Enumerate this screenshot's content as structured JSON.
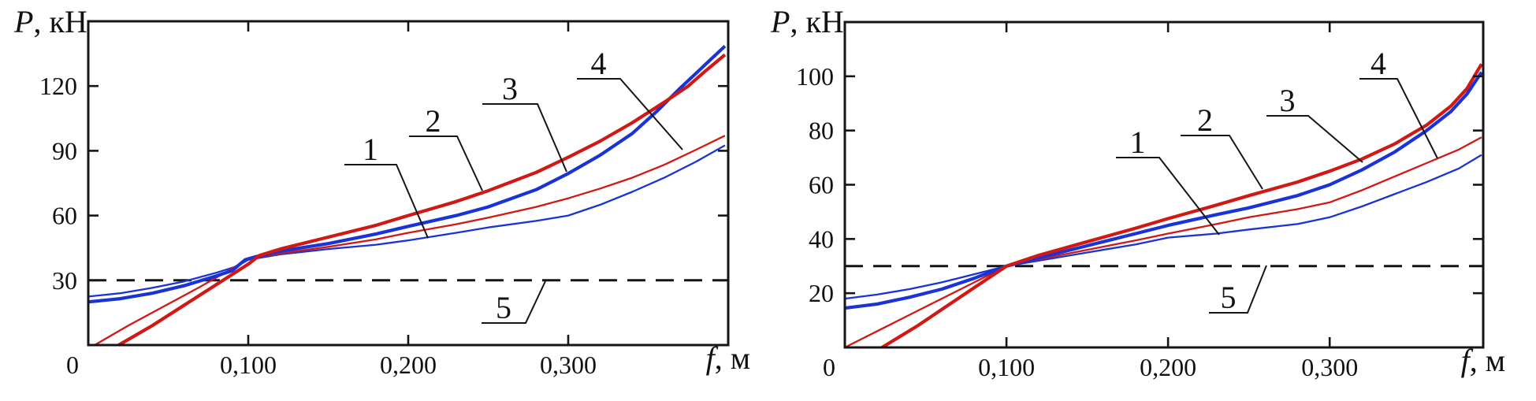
{
  "palette": {
    "red": "#d01815",
    "blue": "#1a33d6",
    "black": "#151515"
  },
  "chart_data": [
    {
      "type": "line",
      "id": "left",
      "title": "",
      "ylabel_var": "P",
      "ylabel_unit": ", кН",
      "xlabel_var": "f",
      "xlabel_unit": ", м",
      "xlim": [
        0,
        0.4
      ],
      "ylim": [
        0,
        150
      ],
      "grid": false,
      "legend_position": "numbered-callouts",
      "x_ticks": [
        {
          "v": 0,
          "label": "0"
        },
        {
          "v": 0.1,
          "label": "0,100"
        },
        {
          "v": 0.2,
          "label": "0,200"
        },
        {
          "v": 0.3,
          "label": "0,300"
        }
      ],
      "y_ticks": [
        {
          "v": 30,
          "label": "30"
        },
        {
          "v": 60,
          "label": "60"
        },
        {
          "v": 90,
          "label": "90"
        },
        {
          "v": 120,
          "label": "120"
        }
      ],
      "series": [
        {
          "name": "1",
          "color": "blue",
          "weight": "thin",
          "style": "solid",
          "points": [
            [
              0,
              22.5
            ],
            [
              0.02,
              24
            ],
            [
              0.04,
              26.5
            ],
            [
              0.06,
              29.5
            ],
            [
              0.08,
              33.5
            ],
            [
              0.093,
              36.5
            ],
            [
              0.1,
              39.5
            ],
            [
              0.12,
              42
            ],
            [
              0.15,
              44.5
            ],
            [
              0.18,
              46.5
            ],
            [
              0.2,
              48.5
            ],
            [
              0.23,
              52
            ],
            [
              0.25,
              54.5
            ],
            [
              0.28,
              57.5
            ],
            [
              0.3,
              60
            ],
            [
              0.32,
              65
            ],
            [
              0.34,
              71
            ],
            [
              0.36,
              77.5
            ],
            [
              0.38,
              85
            ],
            [
              0.398,
              92.5
            ]
          ]
        },
        {
          "name": "2",
          "color": "red",
          "weight": "thick",
          "style": "solid",
          "points": [
            [
              0.019,
              0
            ],
            [
              0.04,
              9
            ],
            [
              0.06,
              18.5
            ],
            [
              0.08,
              28
            ],
            [
              0.1,
              37.5
            ],
            [
              0.107,
              41.5
            ],
            [
              0.12,
              44.5
            ],
            [
              0.15,
              50
            ],
            [
              0.18,
              55.5
            ],
            [
              0.2,
              60
            ],
            [
              0.23,
              66.5
            ],
            [
              0.25,
              71.5
            ],
            [
              0.28,
              80
            ],
            [
              0.3,
              87
            ],
            [
              0.32,
              94.5
            ],
            [
              0.34,
              103
            ],
            [
              0.36,
              112.5
            ],
            [
              0.375,
              120
            ],
            [
              0.385,
              126.5
            ],
            [
              0.398,
              134.5
            ]
          ]
        },
        {
          "name": "3",
          "color": "blue",
          "weight": "thick",
          "style": "solid",
          "points": [
            [
              0,
              20
            ],
            [
              0.02,
              21.5
            ],
            [
              0.04,
              24
            ],
            [
              0.06,
              27.5
            ],
            [
              0.08,
              32
            ],
            [
              0.09,
              34.5
            ],
            [
              0.098,
              39.5
            ],
            [
              0.105,
              41
            ],
            [
              0.12,
              43.5
            ],
            [
              0.15,
              47
            ],
            [
              0.18,
              51.5
            ],
            [
              0.2,
              55
            ],
            [
              0.23,
              60
            ],
            [
              0.25,
              64
            ],
            [
              0.28,
              72
            ],
            [
              0.3,
              79.5
            ],
            [
              0.32,
              88
            ],
            [
              0.34,
              98
            ],
            [
              0.355,
              108
            ],
            [
              0.37,
              119
            ],
            [
              0.385,
              129.5
            ],
            [
              0.398,
              138.5
            ]
          ]
        },
        {
          "name": "4",
          "color": "red",
          "weight": "thin",
          "style": "solid",
          "points": [
            [
              0.004,
              0
            ],
            [
              0.025,
              9
            ],
            [
              0.05,
              19
            ],
            [
              0.07,
              27
            ],
            [
              0.09,
              35.5
            ],
            [
              0.1,
              40
            ],
            [
              0.12,
              42.5
            ],
            [
              0.15,
              45.5
            ],
            [
              0.18,
              49
            ],
            [
              0.2,
              52
            ],
            [
              0.23,
              56
            ],
            [
              0.25,
              59
            ],
            [
              0.28,
              64
            ],
            [
              0.3,
              68
            ],
            [
              0.32,
              72.5
            ],
            [
              0.34,
              77.5
            ],
            [
              0.36,
              83.5
            ],
            [
              0.38,
              90.5
            ],
            [
              0.398,
              97
            ]
          ]
        },
        {
          "name": "5",
          "color": "black",
          "weight": "thin",
          "style": "dashed",
          "points": [
            [
              0,
              30
            ],
            [
              0.4,
              30
            ]
          ]
        }
      ],
      "callouts": [
        {
          "label": "1",
          "u": [
            437,
            503,
            209
          ],
          "t": [
            543,
            302
          ]
        },
        {
          "label": "2",
          "u": [
            519,
            580,
            173
          ],
          "t": [
            612,
            242
          ]
        },
        {
          "label": "3",
          "u": [
            612,
            682,
            132
          ],
          "t": [
            719,
            218
          ]
        },
        {
          "label": "4",
          "u": [
            732,
            787,
            100
          ],
          "t": [
            866,
            190
          ]
        },
        {
          "label": "5",
          "u": [
            611,
            667,
            410
          ],
          "t": [
            692,
            357
          ]
        }
      ]
    },
    {
      "type": "line",
      "id": "right",
      "title": "",
      "ylabel_var": "P",
      "ylabel_unit": ", кН",
      "xlabel_var": "f",
      "xlabel_unit": ", м",
      "xlim": [
        0,
        0.395
      ],
      "ylim": [
        0,
        120
      ],
      "grid": false,
      "legend_position": "numbered-callouts",
      "x_ticks": [
        {
          "v": 0,
          "label": "0"
        },
        {
          "v": 0.1,
          "label": "0,100"
        },
        {
          "v": 0.2,
          "label": "0,200"
        },
        {
          "v": 0.3,
          "label": "0,300"
        }
      ],
      "y_ticks": [
        {
          "v": 20,
          "label": "20"
        },
        {
          "v": 40,
          "label": "40"
        },
        {
          "v": 60,
          "label": "60"
        },
        {
          "v": 80,
          "label": "80"
        },
        {
          "v": 100,
          "label": "100"
        }
      ],
      "series": [
        {
          "name": "1",
          "color": "blue",
          "weight": "thin",
          "style": "solid",
          "points": [
            [
              0,
              18
            ],
            [
              0.02,
              19.5
            ],
            [
              0.04,
              21.5
            ],
            [
              0.06,
              24
            ],
            [
              0.08,
              27
            ],
            [
              0.1,
              30
            ],
            [
              0.12,
              32
            ],
            [
              0.15,
              35
            ],
            [
              0.18,
              38
            ],
            [
              0.2,
              40.5
            ],
            [
              0.23,
              42
            ],
            [
              0.25,
              43.5
            ],
            [
              0.28,
              45.5
            ],
            [
              0.3,
              48
            ],
            [
              0.32,
              52
            ],
            [
              0.34,
              56.5
            ],
            [
              0.36,
              61
            ],
            [
              0.38,
              66
            ],
            [
              0.394,
              71
            ]
          ]
        },
        {
          "name": "2",
          "color": "red",
          "weight": "thick",
          "style": "solid",
          "points": [
            [
              0.023,
              0
            ],
            [
              0.045,
              8
            ],
            [
              0.065,
              16
            ],
            [
              0.085,
              24
            ],
            [
              0.1,
              30
            ],
            [
              0.12,
              34
            ],
            [
              0.15,
              39
            ],
            [
              0.18,
              44
            ],
            [
              0.2,
              47.5
            ],
            [
              0.23,
              52.5
            ],
            [
              0.25,
              56
            ],
            [
              0.28,
              61
            ],
            [
              0.3,
              65
            ],
            [
              0.32,
              69.5
            ],
            [
              0.34,
              75
            ],
            [
              0.36,
              82
            ],
            [
              0.375,
              89
            ],
            [
              0.385,
              95.5
            ],
            [
              0.394,
              104.5
            ]
          ]
        },
        {
          "name": "3",
          "color": "blue",
          "weight": "thick",
          "style": "solid",
          "points": [
            [
              0,
              14.5
            ],
            [
              0.02,
              16
            ],
            [
              0.04,
              18.5
            ],
            [
              0.06,
              21.5
            ],
            [
              0.08,
              25.5
            ],
            [
              0.1,
              30
            ],
            [
              0.12,
              33
            ],
            [
              0.15,
              37.5
            ],
            [
              0.18,
              42
            ],
            [
              0.2,
              45
            ],
            [
              0.23,
              49
            ],
            [
              0.25,
              51.5
            ],
            [
              0.28,
              56
            ],
            [
              0.3,
              60
            ],
            [
              0.32,
              65.5
            ],
            [
              0.34,
              72
            ],
            [
              0.36,
              80
            ],
            [
              0.375,
              87
            ],
            [
              0.385,
              93.5
            ],
            [
              0.394,
              101.5
            ]
          ]
        },
        {
          "name": "4",
          "color": "red",
          "weight": "thin",
          "style": "solid",
          "points": [
            [
              0,
              0
            ],
            [
              0.025,
              7.5
            ],
            [
              0.05,
              15
            ],
            [
              0.075,
              22.5
            ],
            [
              0.1,
              30
            ],
            [
              0.12,
              32.5
            ],
            [
              0.15,
              36
            ],
            [
              0.18,
              39.5
            ],
            [
              0.2,
              42
            ],
            [
              0.23,
              45.5
            ],
            [
              0.25,
              48
            ],
            [
              0.28,
              51
            ],
            [
              0.3,
              53.5
            ],
            [
              0.32,
              58
            ],
            [
              0.34,
              63
            ],
            [
              0.36,
              68
            ],
            [
              0.38,
              73
            ],
            [
              0.394,
              77.5
            ]
          ]
        },
        {
          "name": "5",
          "color": "black",
          "weight": "thin",
          "style": "dashed",
          "points": [
            [
              0,
              30
            ],
            [
              0.395,
              30
            ]
          ]
        }
      ],
      "callouts": [
        {
          "label": "1",
          "u": [
            1416,
            1471,
            200
          ],
          "t": [
            1547,
            298
          ]
        },
        {
          "label": "2",
          "u": [
            1498,
            1560,
            172
          ],
          "t": [
            1602,
            240
          ]
        },
        {
          "label": "3",
          "u": [
            1607,
            1660,
            147
          ],
          "t": [
            1729,
            206
          ]
        },
        {
          "label": "4",
          "u": [
            1725,
            1773,
            100
          ],
          "t": [
            1824,
            201
          ]
        },
        {
          "label": "5",
          "u": [
            1534,
            1583,
            397
          ],
          "t": [
            1607,
            337
          ]
        }
      ]
    }
  ]
}
